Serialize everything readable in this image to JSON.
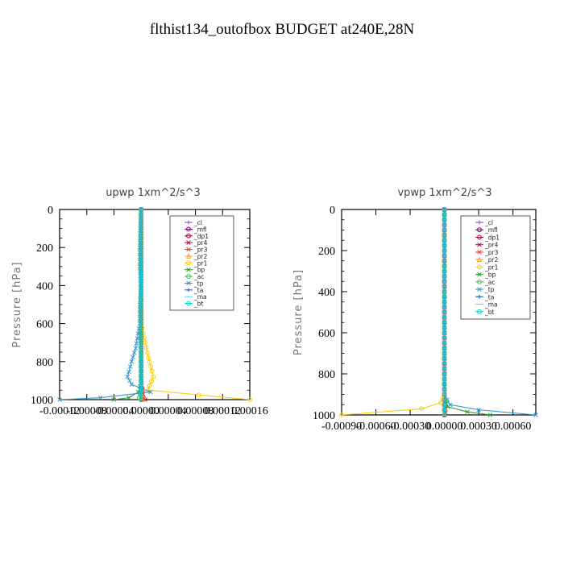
{
  "page": {
    "title": "flthist134_outofbox  BUDGET at240E,28N"
  },
  "chart_data": [
    {
      "type": "line",
      "title": "upwp   1xm^2/s^3",
      "ylabel": "Pressure [hPa]",
      "xlabel": "",
      "x_tick_labels": [
        "-0.00012",
        "-0.00008",
        "-0.00004",
        "0.00000",
        "0.00004",
        "0.00008",
        "0.00012",
        "0.00016"
      ],
      "y_tick_labels": [
        "0",
        "200",
        "400",
        "600",
        "800",
        "1000"
      ],
      "xlim": [
        -0.00012,
        0.00016
      ],
      "ylim": [
        1000,
        0
      ],
      "grid": false,
      "legend_position": "top-right",
      "series": [
        {
          "name": "_cl",
          "color": "#9933cc",
          "marker": "+",
          "points": [
            [
              0,
              0
            ],
            [
              0,
              300
            ],
            [
              0,
              700
            ],
            [
              0,
              900
            ],
            [
              0,
              1000
            ]
          ]
        },
        {
          "name": "_mfl",
          "color": "#660066",
          "marker": "o",
          "points": [
            [
              0,
              0
            ],
            [
              0,
              1000
            ]
          ]
        },
        {
          "name": "_dp1",
          "color": "#990033",
          "marker": "o",
          "points": [
            [
              0,
              0
            ],
            [
              0,
              1000
            ]
          ]
        },
        {
          "name": "_pr4",
          "color": "#cc0033",
          "marker": "x",
          "points": [
            [
              0,
              0
            ],
            [
              0,
              900
            ],
            [
              3e-06,
              990
            ],
            [
              6e-06,
              1000
            ]
          ]
        },
        {
          "name": "_pr3",
          "color": "#ff3333",
          "marker": "x",
          "points": [
            [
              0,
              0
            ],
            [
              0,
              900
            ],
            [
              4e-06,
              995
            ],
            [
              0,
              1000
            ]
          ]
        },
        {
          "name": "_pr2",
          "color": "#ff9933",
          "marker": "^",
          "points": [
            [
              0,
              0
            ],
            [
              0,
              950
            ],
            [
              2e-06,
              1000
            ]
          ]
        },
        {
          "name": "_pr1",
          "color": "#ffcc00",
          "marker": "o",
          "points": [
            [
              0,
              0
            ],
            [
              0,
              600
            ],
            [
              6e-06,
              700
            ],
            [
              1.1e-05,
              780
            ],
            [
              1.6e-05,
              850
            ],
            [
              1.8e-05,
              880
            ],
            [
              1e-05,
              950
            ],
            [
              0.00016,
              1000
            ]
          ]
        },
        {
          "name": "_bp",
          "color": "#339933",
          "marker": "x",
          "points": [
            [
              0,
              0
            ],
            [
              0,
              900
            ],
            [
              -4e-06,
              960
            ],
            [
              -1.8e-05,
              990
            ],
            [
              -4e-05,
              1000
            ]
          ]
        },
        {
          "name": "_ac",
          "color": "#33cc33",
          "marker": "o",
          "points": [
            [
              0,
              0
            ],
            [
              0,
              950
            ],
            [
              -3e-06,
              990
            ],
            [
              0,
              1000
            ]
          ]
        },
        {
          "name": "_tp",
          "color": "#3399cc",
          "marker": "x",
          "points": [
            [
              0,
              0
            ],
            [
              -2e-06,
              200
            ],
            [
              -2e-06,
              300
            ],
            [
              0,
              400
            ],
            [
              -2e-06,
              500
            ],
            [
              -2e-06,
              600
            ],
            [
              -8e-06,
              730
            ],
            [
              -1.4e-05,
              800
            ],
            [
              -2e-05,
              880
            ],
            [
              -1.4e-05,
              920
            ],
            [
              0,
              940
            ],
            [
              1.4e-05,
              960
            ],
            [
              -6e-05,
              990
            ],
            [
              -0.00012,
              1000
            ]
          ]
        },
        {
          "name": "_ta",
          "color": "#0066cc",
          "marker": "+",
          "points": [
            [
              0,
              0
            ],
            [
              0,
              1000
            ]
          ]
        },
        {
          "name": "_ma",
          "color": "#66ccff",
          "marker": "-",
          "points": [
            [
              0,
              0
            ],
            [
              0,
              1000
            ]
          ]
        },
        {
          "name": "_bt",
          "color": "#00cccc",
          "marker": "o",
          "points": [
            [
              0,
              0
            ],
            [
              0,
              1000
            ]
          ]
        }
      ]
    },
    {
      "type": "line",
      "title": "vpwp   1xm^2/s^3",
      "ylabel": "Pressure [hPa]",
      "xlabel": "",
      "x_tick_labels": [
        "-0.00090",
        "-0.00060",
        "-0.00030",
        "0.00000",
        "0.00030",
        "0.00060"
      ],
      "y_tick_labels": [
        "0",
        "200",
        "400",
        "600",
        "800",
        "1000"
      ],
      "xlim": [
        -0.0009,
        0.0008
      ],
      "ylim": [
        1000,
        0
      ],
      "grid": false,
      "legend_position": "top-right",
      "series": [
        {
          "name": "_cl",
          "color": "#9933cc",
          "marker": "+",
          "points": [
            [
              0,
              0
            ],
            [
              0,
              1000
            ]
          ]
        },
        {
          "name": "_mfl",
          "color": "#660066",
          "marker": "o",
          "points": [
            [
              0,
              0
            ],
            [
              0,
              1000
            ]
          ]
        },
        {
          "name": "_dp1",
          "color": "#990033",
          "marker": "o",
          "points": [
            [
              0,
              0
            ],
            [
              0,
              1000
            ]
          ]
        },
        {
          "name": "_pr4",
          "color": "#cc0033",
          "marker": "x",
          "points": [
            [
              0,
              0
            ],
            [
              0,
              900
            ],
            [
              1e-05,
              990
            ],
            [
              0,
              1000
            ]
          ]
        },
        {
          "name": "_pr3",
          "color": "#ff3333",
          "marker": "x",
          "points": [
            [
              0,
              0
            ],
            [
              0,
              1000
            ]
          ]
        },
        {
          "name": "_pr2",
          "color": "#ff9933",
          "marker": "^",
          "points": [
            [
              0,
              0
            ],
            [
              0,
              1000
            ]
          ]
        },
        {
          "name": "_pr1",
          "color": "#ffcc00",
          "marker": "o",
          "points": [
            [
              0,
              0
            ],
            [
              0,
              900
            ],
            [
              -3e-05,
              940
            ],
            [
              -0.0002,
              970
            ],
            [
              -0.0009,
              1000
            ]
          ]
        },
        {
          "name": "_bp",
          "color": "#339933",
          "marker": "x",
          "points": [
            [
              0,
              0
            ],
            [
              0,
              900
            ],
            [
              3e-05,
              960
            ],
            [
              0.0002,
              985
            ],
            [
              0.0004,
              1000
            ]
          ]
        },
        {
          "name": "_ac",
          "color": "#33cc33",
          "marker": "o",
          "points": [
            [
              0,
              0
            ],
            [
              0,
              950
            ],
            [
              0,
              1000
            ]
          ]
        },
        {
          "name": "_tp",
          "color": "#3399cc",
          "marker": "x",
          "points": [
            [
              0,
              0
            ],
            [
              0,
              900
            ],
            [
              5e-05,
              950
            ],
            [
              0.0003,
              975
            ],
            [
              0.0008,
              1000
            ]
          ]
        },
        {
          "name": "_ta",
          "color": "#0066cc",
          "marker": "+",
          "points": [
            [
              0,
              0
            ],
            [
              0,
              1000
            ]
          ]
        },
        {
          "name": "_ma",
          "color": "#66ccff",
          "marker": "-",
          "points": [
            [
              0,
              0
            ],
            [
              0,
              1000
            ]
          ]
        },
        {
          "name": "_bt",
          "color": "#00cccc",
          "marker": "o",
          "points": [
            [
              0,
              0
            ],
            [
              0,
              1000
            ]
          ]
        }
      ]
    }
  ]
}
